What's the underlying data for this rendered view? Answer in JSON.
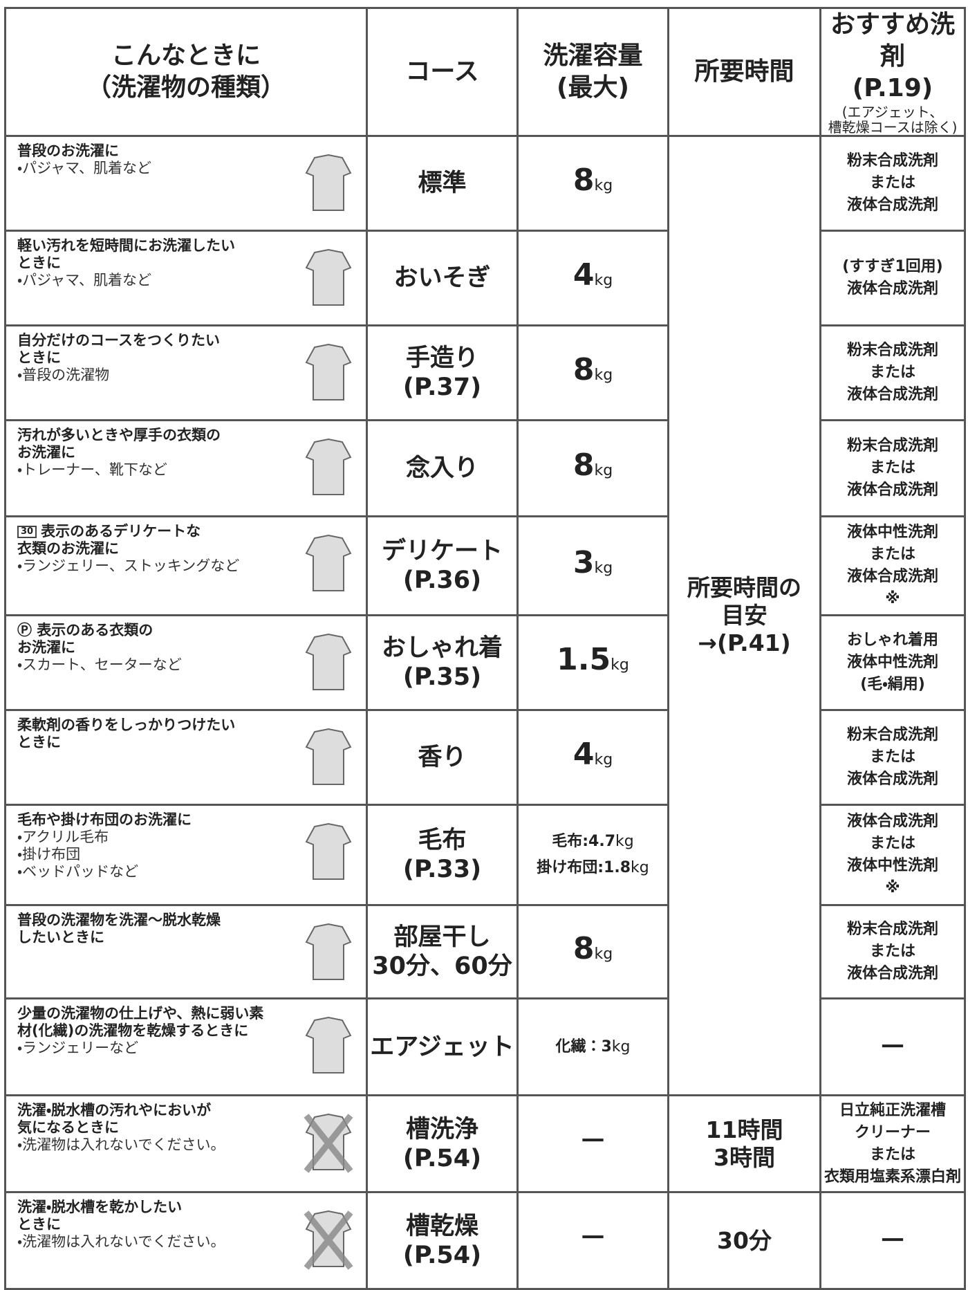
{
  "header": {
    "situation": [
      "こんなときに",
      "（洗濯物の種類）"
    ],
    "course": [
      "コース"
    ],
    "capacity": [
      "洗濯容量",
      "(最大)"
    ],
    "time": [
      "所要時間"
    ],
    "detergent": [
      "おすすめ洗剤",
      "(P.19)"
    ],
    "detergent_note": [
      "(エアジェット、",
      "槽乾燥コースは除く)"
    ]
  },
  "rows": [
    {
      "situation": {
        "title": [
          "普段のお洗濯に"
        ],
        "items": [
          "・パジャマ、肌着など"
        ]
      },
      "course": [
        "標準"
      ],
      "capacity": [
        {
          "value": "8",
          "unit": "kg"
        }
      ],
      "time": [
        "所要時間の",
        "目安",
        "→(P.41)"
      ],
      "detergent": [
        "粉末合成洗剤",
        "または",
        "液体合成洗剤"
      ]
    },
    {
      "situation": {
        "title": [
          "軽い汚れを短時間にお洗濯したい",
          "ときに"
        ],
        "items": [
          "・パジャマ、肌着など"
        ]
      },
      "course": [
        "おいそぎ"
      ],
      "capacity": [
        {
          "value": "4",
          "unit": "kg"
        }
      ],
      "detergent": [
        "(すすぎ1回用)",
        "液体合成洗剤"
      ]
    },
    {
      "situation": {
        "title": [
          "自分だけのコースをつくりたい",
          "ときに"
        ],
        "items": [
          "・普段の洗濯物"
        ]
      },
      "course": [
        "手造り",
        "(P.37)"
      ],
      "capacity": [
        {
          "value": "8",
          "unit": "kg"
        }
      ],
      "detergent": [
        "粉末合成洗剤",
        "または",
        "液体合成洗剤"
      ]
    },
    {
      "situation": {
        "title": [
          "汚れが多いときや厚手の衣類の",
          "お洗濯に"
        ],
        "items": [
          "・トレーナー、靴下など"
        ]
      },
      "course": [
        "念入り"
      ],
      "capacity": [
        {
          "value": "8",
          "unit": "kg"
        }
      ],
      "detergent": [
        "粉末合成洗剤",
        "または",
        "液体合成洗剤"
      ]
    },
    {
      "situation": {
        "symbol": "30",
        "title": [
          "表示のあるデリケートな",
          "衣類のお洗濯に"
        ],
        "items": [
          "・ランジェリー、ストッキングなど"
        ]
      },
      "course": [
        "デリケート",
        "(P.36)"
      ],
      "capacity": [
        {
          "value": "3",
          "unit": "kg"
        }
      ],
      "detergent": [
        "液体中性洗剤",
        "または",
        "液体合成洗剤",
        "※"
      ]
    },
    {
      "situation": {
        "title": [
          "Ⓟ 表示のある衣類の",
          "お洗濯に"
        ],
        "items": [
          "・スカート、セーターなど"
        ]
      },
      "course": [
        "おしゃれ着",
        "(P.35)"
      ],
      "capacity": [
        {
          "value": "1.5",
          "unit": "kg"
        }
      ],
      "detergent": [
        "おしゃれ着用",
        "液体中性洗剤",
        "(毛・絹用)"
      ]
    },
    {
      "situation": {
        "title": [
          "柔軟剤の香りをしっかりつけたい",
          "ときに"
        ],
        "items": []
      },
      "course": [
        "香り"
      ],
      "capacity": [
        {
          "value": "4",
          "unit": "kg"
        }
      ],
      "detergent": [
        "粉末合成洗剤",
        "または",
        "液体合成洗剤"
      ]
    },
    {
      "situation": {
        "title": [
          "毛布や掛け布団のお洗濯に"
        ],
        "items": [
          "・アクリル毛布",
          "・掛け布団",
          "・ベッドパッドなど"
        ]
      },
      "course": [
        "毛布",
        "(P.33)"
      ],
      "capacity": [
        {
          "label": "毛布:",
          "value": "4.7",
          "unit": "kg"
        },
        {
          "label": "掛け布団:",
          "value": "1.8",
          "unit": "kg"
        }
      ],
      "detergent": [
        "液体合成洗剤",
        "または",
        "液体中性洗剤",
        "※"
      ]
    },
    {
      "situation": {
        "title": [
          "普段の洗濯物を洗濯～脱水乾燥",
          "したいときに"
        ],
        "items": []
      },
      "course": [
        "部屋干し",
        "30分、60分"
      ],
      "capacity": [
        {
          "value": "8",
          "unit": "kg"
        }
      ],
      "detergent": [
        "粉末合成洗剤",
        "または",
        "液体合成洗剤"
      ]
    },
    {
      "situation": {
        "title": [
          "少量の洗濯物の仕上げや、熱に弱い素",
          "材(化繊)の洗濯物を乾燥するときに"
        ],
        "items": [
          "・ランジェリーなど"
        ]
      },
      "course": [
        "エアジェット"
      ],
      "capacity": [
        {
          "label": "化繊：",
          "value": "3",
          "unit": "kg"
        }
      ],
      "detergent": [
        "－"
      ]
    },
    {
      "situation": {
        "title": [
          "洗濯・脱水槽の汚れやにおいが",
          "気になるときに"
        ],
        "items": [
          "・洗濯物は入れないでください。"
        ]
      },
      "course": [
        "槽洗浄",
        "(P.54)"
      ],
      "capacity": [
        {
          "value": "－"
        }
      ],
      "time": [
        "11時間",
        "3時間"
      ],
      "detergent": [
        "日立純正洗濯槽",
        "クリーナー",
        "または",
        "衣類用塩素系漂白剤"
      ]
    },
    {
      "situation": {
        "title": [
          "洗濯・脱水槽を乾かしたい",
          "ときに"
        ],
        "items": [
          "・洗濯物は入れないでください。"
        ]
      },
      "course": [
        "槽乾燥",
        "(P.54)"
      ],
      "capacity": [
        {
          "value": "－"
        }
      ],
      "time": [
        "30分"
      ],
      "detergent": [
        "－"
      ]
    }
  ]
}
